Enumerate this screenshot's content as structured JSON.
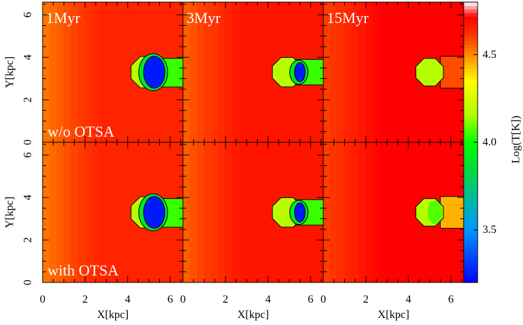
{
  "chart_data": {
    "type": "heatmap",
    "grid": {
      "rows": 2,
      "cols": 3,
      "column_labels": [
        "1Myr",
        "3Myr",
        "15Myr"
      ],
      "row_labels": [
        "w/o OTSA",
        "with OTSA"
      ]
    },
    "xlabel": "X[kpc]",
    "ylabel": "Y[kpc]",
    "xlim": [
      0,
      6.6
    ],
    "ylim": [
      0,
      6.6
    ],
    "xticks": [
      "0",
      "2",
      "4",
      "6"
    ],
    "yticks": [
      "0",
      "2",
      "4",
      "6"
    ],
    "colorbar": {
      "label": "Log(T[K])",
      "range": [
        3.2,
        4.8
      ],
      "ticks": [
        "3.5",
        "4.0",
        "4.5"
      ],
      "colormap": [
        "#0000ff",
        "#00a0ff",
        "#00ff00",
        "#c8ff00",
        "#ffff00",
        "#ff8000",
        "#ff0000",
        "#ffffff"
      ]
    },
    "panels": [
      {
        "time": "1Myr",
        "case": "w/o OTSA",
        "background_logT": 4.65,
        "cloud": {
          "cx": 4.9,
          "cy": 3.3,
          "r": 0.8
        },
        "core": {
          "cx": 5.25,
          "cy": 3.3,
          "rx": 0.5,
          "ry": 0.75,
          "logT": 3.25
        },
        "shadow": {
          "x0": 5.0,
          "y0": 2.6,
          "y1": 3.95,
          "logT": 4.05
        }
      },
      {
        "time": "3Myr",
        "case": "w/o OTSA",
        "background_logT": 4.68,
        "cloud": {
          "cx": 4.9,
          "cy": 3.3,
          "r": 0.75
        },
        "core": {
          "cx": 5.5,
          "cy": 3.3,
          "rx": 0.25,
          "ry": 0.45,
          "logT": 3.25
        },
        "shadow": {
          "x0": 5.2,
          "y0": 2.7,
          "y1": 3.9,
          "logT": 4.05
        }
      },
      {
        "time": "15Myr",
        "case": "w/o OTSA",
        "background_logT": 4.72,
        "cloud": {
          "cx": 5.0,
          "cy": 3.3,
          "r": 0.7
        },
        "core": null,
        "shadow": {
          "x0": 5.5,
          "y0": 2.55,
          "y1": 4.05,
          "logT": 4.58
        }
      },
      {
        "time": "1Myr",
        "case": "with OTSA",
        "background_logT": 4.65,
        "cloud": {
          "cx": 4.9,
          "cy": 3.3,
          "r": 0.8
        },
        "core": {
          "cx": 5.25,
          "cy": 3.3,
          "rx": 0.5,
          "ry": 0.75,
          "logT": 3.25
        },
        "shadow": {
          "x0": 5.0,
          "y0": 2.6,
          "y1": 3.95,
          "logT": 4.05
        }
      },
      {
        "time": "3Myr",
        "case": "with OTSA",
        "background_logT": 4.68,
        "cloud": {
          "cx": 4.9,
          "cy": 3.3,
          "r": 0.75
        },
        "core": {
          "cx": 5.5,
          "cy": 3.3,
          "rx": 0.25,
          "ry": 0.45,
          "logT": 3.25
        },
        "shadow": {
          "x0": 5.2,
          "y0": 2.7,
          "y1": 3.9,
          "logT": 4.05
        }
      },
      {
        "time": "15Myr",
        "case": "with OTSA",
        "background_logT": 4.72,
        "cloud": {
          "cx": 5.0,
          "cy": 3.3,
          "r": 0.7
        },
        "core": null,
        "shadow": {
          "x0": 5.5,
          "y0": 2.55,
          "y1": 4.05,
          "logT": 4.45
        }
      }
    ]
  }
}
